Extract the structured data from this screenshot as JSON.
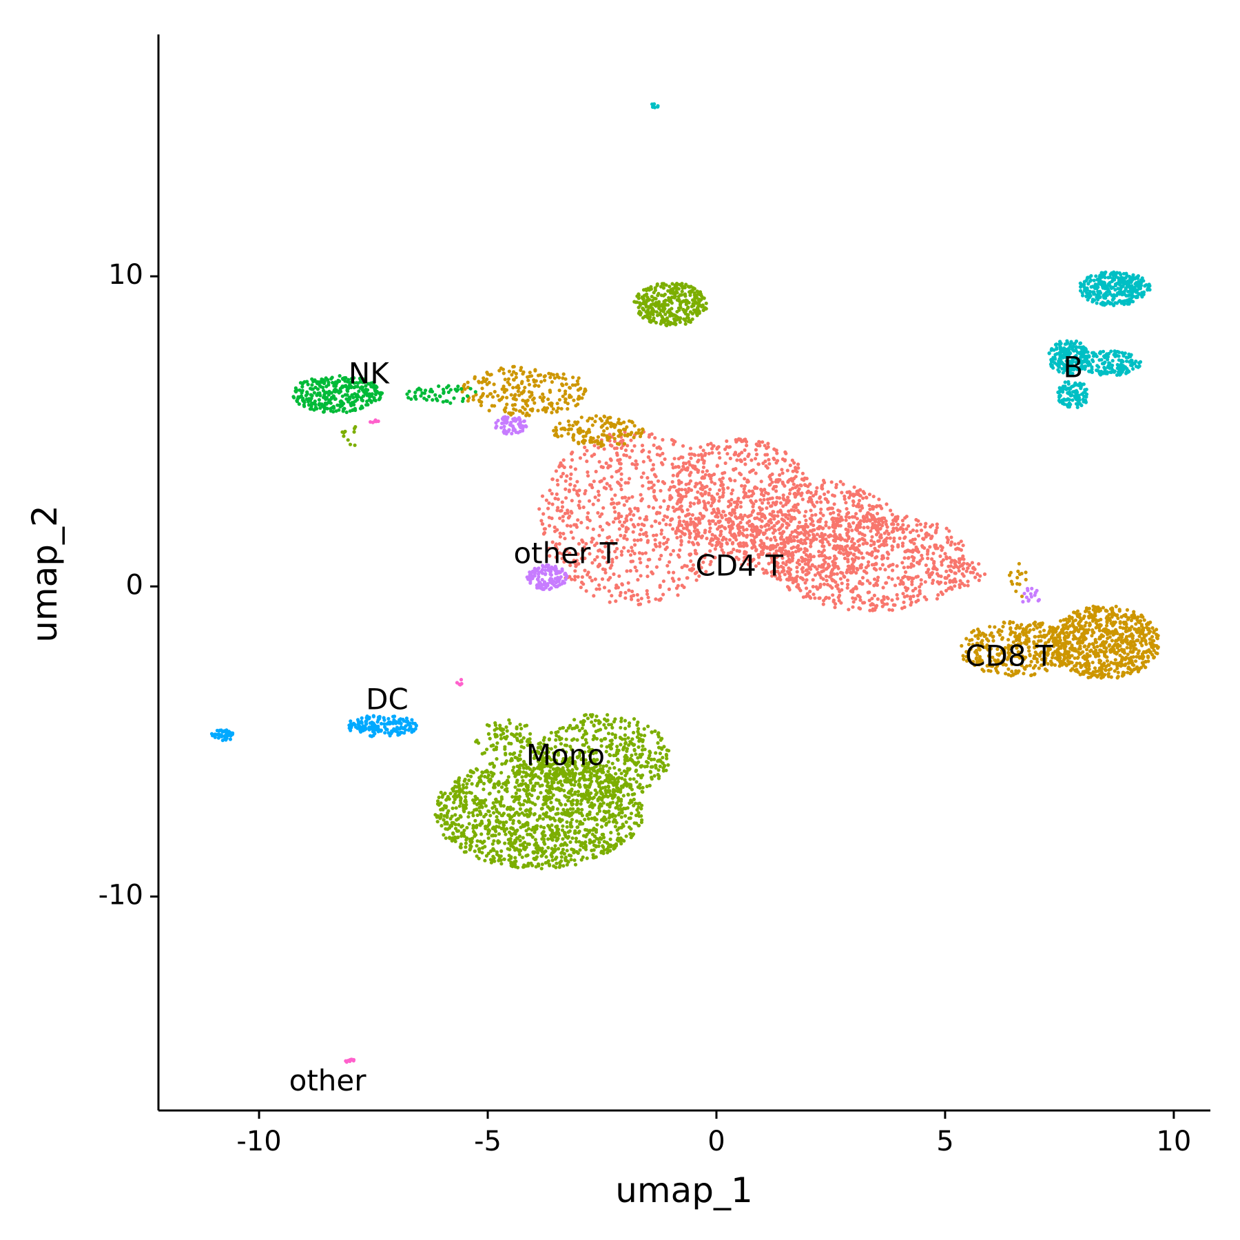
{
  "chart_data": {
    "type": "scatter",
    "title": "",
    "xlabel": "umap_1",
    "ylabel": "umap_2",
    "xlim": [
      -12.2,
      10.8
    ],
    "ylim": [
      -16.9,
      17.8
    ],
    "xticks": [
      -10,
      -5,
      0,
      5,
      10
    ],
    "xtick_labels": [
      "-10",
      "-5",
      "0",
      "5",
      "10"
    ],
    "yticks": [
      -10,
      0,
      10
    ],
    "ytick_labels": [
      "-10",
      "0",
      "10"
    ],
    "grid": false,
    "legend": "none",
    "point_size": 1.2,
    "series": [
      {
        "name": "CD4 T",
        "color": "#F8766D",
        "label_pos": [
          0.5,
          0.6
        ],
        "blobs": [
          {
            "cx": -1.8,
            "cy": 2.2,
            "rx": 2.1,
            "ry": 2.8,
            "n": 700
          },
          {
            "cx": 0.5,
            "cy": 2.8,
            "rx": 1.6,
            "ry": 2.0,
            "n": 500
          },
          {
            "cx": 2.0,
            "cy": 1.8,
            "rx": 2.0,
            "ry": 1.7,
            "n": 600
          },
          {
            "cx": 3.4,
            "cy": 0.8,
            "rx": 2.2,
            "ry": 1.6,
            "n": 650
          },
          {
            "cx": 5.3,
            "cy": 0.4,
            "rx": 0.6,
            "ry": 0.5,
            "n": 50
          }
        ]
      },
      {
        "name": "CD8 T",
        "color": "#CD9600",
        "label_pos": [
          6.4,
          -2.3
        ],
        "blobs": [
          {
            "cx": 8.5,
            "cy": -1.8,
            "rx": 1.2,
            "ry": 1.2,
            "n": 700
          },
          {
            "cx": 6.6,
            "cy": -2.0,
            "rx": 1.3,
            "ry": 0.9,
            "n": 350
          },
          {
            "cx": 6.6,
            "cy": 0.2,
            "rx": 0.2,
            "ry": 0.6,
            "n": 15
          },
          {
            "cx": -4.2,
            "cy": 6.3,
            "rx": 1.4,
            "ry": 0.8,
            "n": 230
          },
          {
            "cx": -2.6,
            "cy": 5.0,
            "rx": 1.0,
            "ry": 0.5,
            "n": 140
          }
        ]
      },
      {
        "name": "Mono",
        "color": "#7CAE00",
        "label_pos": [
          -3.3,
          -5.5
        ],
        "blobs": [
          {
            "cx": -3.9,
            "cy": -7.3,
            "rx": 2.3,
            "ry": 1.8,
            "n": 1300
          },
          {
            "cx": -2.5,
            "cy": -5.5,
            "rx": 1.5,
            "ry": 1.4,
            "n": 500
          },
          {
            "cx": -4.6,
            "cy": -5.0,
            "rx": 0.7,
            "ry": 0.7,
            "n": 90
          },
          {
            "cx": -1.0,
            "cy": 9.1,
            "rx": 0.8,
            "ry": 0.7,
            "n": 320
          },
          {
            "cx": -8.0,
            "cy": 4.9,
            "rx": 0.2,
            "ry": 0.4,
            "n": 10
          }
        ]
      },
      {
        "name": "B",
        "color": "#00BFC4",
        "label_pos": [
          7.8,
          7.0
        ],
        "blobs": [
          {
            "cx": 8.7,
            "cy": 9.6,
            "rx": 0.8,
            "ry": 0.55,
            "n": 320
          },
          {
            "cx": 7.7,
            "cy": 7.4,
            "rx": 0.45,
            "ry": 0.55,
            "n": 180
          },
          {
            "cx": 8.6,
            "cy": 7.2,
            "rx": 0.7,
            "ry": 0.4,
            "n": 160
          },
          {
            "cx": 7.8,
            "cy": 6.2,
            "rx": 0.35,
            "ry": 0.45,
            "n": 100
          },
          {
            "cx": -1.35,
            "cy": 15.5,
            "rx": 0.08,
            "ry": 0.08,
            "n": 8
          }
        ]
      },
      {
        "name": "other T",
        "color": "#C77CFF",
        "label_pos": [
          -3.3,
          1.0
        ],
        "blobs": [
          {
            "cx": -3.7,
            "cy": 0.3,
            "rx": 0.45,
            "ry": 0.4,
            "n": 120
          },
          {
            "cx": -4.5,
            "cy": 5.2,
            "rx": 0.35,
            "ry": 0.3,
            "n": 60
          },
          {
            "cx": 6.9,
            "cy": -0.3,
            "rx": 0.3,
            "ry": 0.3,
            "n": 15
          }
        ]
      },
      {
        "name": "NK",
        "color": "#00BA38",
        "label_pos": [
          -7.6,
          6.8
        ],
        "blobs": [
          {
            "cx": -8.3,
            "cy": 6.2,
            "rx": 1.0,
            "ry": 0.6,
            "n": 300
          },
          {
            "cx": -6.0,
            "cy": 6.2,
            "rx": 0.8,
            "ry": 0.3,
            "n": 50
          }
        ]
      },
      {
        "name": "DC",
        "color": "#00A9FF",
        "label_pos": [
          -7.2,
          -3.7
        ],
        "blobs": [
          {
            "cx": -7.3,
            "cy": -4.5,
            "rx": 0.8,
            "ry": 0.35,
            "n": 160
          },
          {
            "cx": -10.8,
            "cy": -4.8,
            "rx": 0.25,
            "ry": 0.18,
            "n": 40
          }
        ]
      },
      {
        "name": "other",
        "color": "#FF61CC",
        "label_pos": [
          -8.5,
          -16.0
        ],
        "blobs": [
          {
            "cx": -8.0,
            "cy": -15.3,
            "rx": 0.12,
            "ry": 0.06,
            "n": 10
          },
          {
            "cx": -7.5,
            "cy": 5.3,
            "rx": 0.12,
            "ry": 0.08,
            "n": 6
          },
          {
            "cx": -5.6,
            "cy": -3.1,
            "rx": 0.1,
            "ry": 0.1,
            "n": 5
          }
        ]
      }
    ]
  }
}
